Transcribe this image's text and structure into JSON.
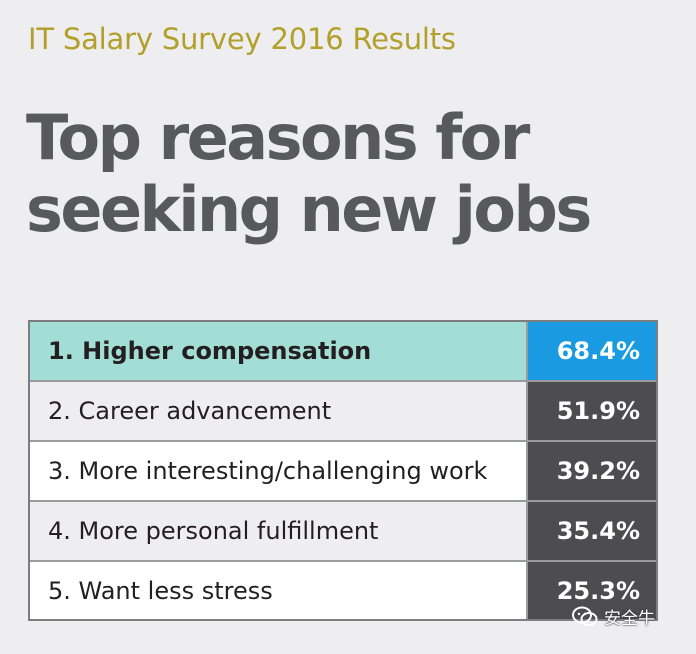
{
  "header": {
    "survey_label": "IT Salary Survey 2016 Results",
    "title_line1": "Top reasons for",
    "title_line2": "seeking new jobs"
  },
  "chart_data": {
    "type": "table",
    "title": "Top reasons for seeking new jobs",
    "rows": [
      {
        "label": "1. Higher compensation",
        "value": "68.4%",
        "percent": 68.4,
        "highlight": true
      },
      {
        "label": "2. Career advancement",
        "value": "51.9%",
        "percent": 51.9,
        "highlight": false
      },
      {
        "label": "3. More interesting/challenging work",
        "value": "39.2%",
        "percent": 39.2,
        "highlight": false
      },
      {
        "label": "4. More personal fulfillment",
        "value": "35.4%",
        "percent": 35.4,
        "highlight": false
      },
      {
        "label": "5. Want less stress",
        "value": "25.3%",
        "percent": 25.3,
        "highlight": false
      }
    ]
  },
  "watermark": {
    "text": "安全牛",
    "icon": "wechat-icon"
  },
  "colors": {
    "survey_label": "#b3a02a",
    "headline": "#58595b",
    "highlight_label_bg": "#a3ded6",
    "highlight_value_bg": "#1a9ae1",
    "value_bg": "#4d4d4f"
  }
}
